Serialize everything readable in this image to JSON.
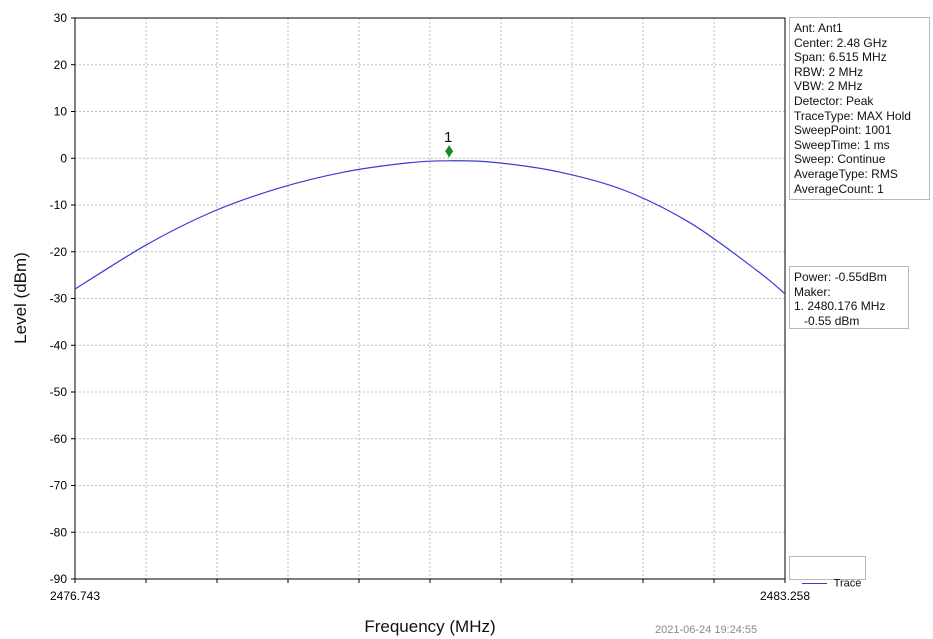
{
  "chart_data": {
    "type": "line",
    "xlabel": "Frequency (MHz)",
    "ylabel": "Level (dBm)",
    "xlim": [
      2476.743,
      2483.258
    ],
    "ylim": [
      -90,
      30
    ],
    "x_tick_labels": [
      "2476.743",
      "2483.258"
    ],
    "y_ticks": [
      30,
      20,
      10,
      0,
      -10,
      -20,
      -30,
      -40,
      -50,
      -60,
      -70,
      -80,
      -90
    ],
    "grid": true,
    "legend_position": "bottom-right",
    "series": [
      {
        "name": "Trace",
        "color": "#3a3ad8",
        "x": [
          2476.743,
          2477.4,
          2478.0,
          2478.6,
          2479.2,
          2479.8,
          2480.176,
          2480.6,
          2481.2,
          2481.8,
          2482.4,
          2483.0,
          2483.258
        ],
        "y": [
          -28,
          -18.5,
          -11.5,
          -6.5,
          -3.0,
          -1.0,
          -0.55,
          -0.9,
          -3.0,
          -7.0,
          -14.0,
          -24.0,
          -29
        ]
      }
    ],
    "marker": {
      "label": "1",
      "x": 2480.176,
      "y": 1.5,
      "color": "#1a8a2a"
    },
    "timestamp": "2021-06-24 19:24:55"
  },
  "info_box": {
    "lines": [
      "Ant: Ant1",
      "Center: 2.48 GHz",
      "Span: 6.515 MHz",
      "RBW: 2 MHz",
      "VBW: 2 MHz",
      "Detector: Peak",
      "TraceType: MAX Hold",
      "SweepPoint: 1001",
      "SweepTime: 1 ms",
      "Sweep: Continue",
      "AverageType: RMS",
      "AverageCount: 1"
    ]
  },
  "power_box": {
    "lines": [
      "Power: -0.55dBm",
      "Maker:",
      "1. 2480.176 MHz",
      "   -0.55 dBm"
    ]
  },
  "legend": {
    "label": "Trace"
  }
}
